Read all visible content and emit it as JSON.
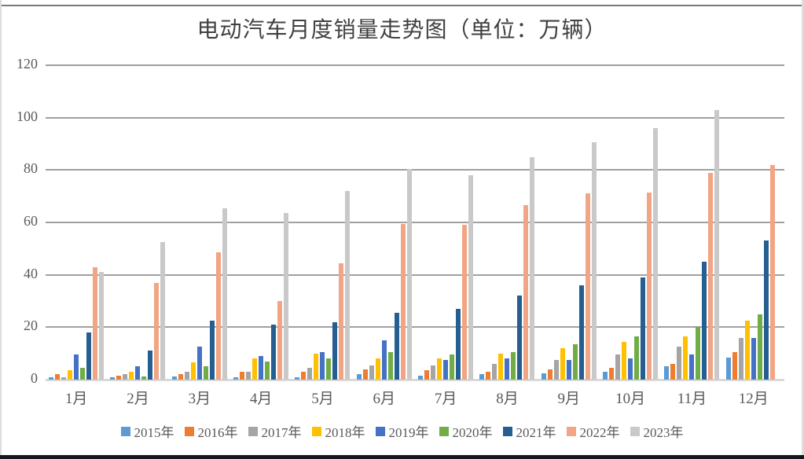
{
  "page": {
    "title": "电动汽车月度销量走势图（单位：万辆）"
  },
  "style": {
    "grid_color": "#a0a0a0",
    "axis_baseline_color": "#d9d9d9",
    "tick_label_color": "#595959",
    "title_color": "#404040",
    "background": "#ffffff"
  },
  "chart_data": {
    "type": "bar",
    "title": "电动汽车月度销量走势图（单位：万辆）",
    "unit": "万辆",
    "categories": [
      "1月",
      "2月",
      "3月",
      "4月",
      "5月",
      "6月",
      "7月",
      "8月",
      "9月",
      "10月",
      "11月",
      "12月"
    ],
    "series": [
      {
        "name": "2015年",
        "color": "#5B9BD5",
        "values": [
          1,
          0.8,
          1.2,
          1,
          1,
          2,
          1.5,
          2,
          2.5,
          3,
          5,
          8.5
        ]
      },
      {
        "name": "2016年",
        "color": "#ED7D31",
        "values": [
          2,
          1.5,
          2,
          3,
          3,
          4,
          3.5,
          3,
          4,
          4.5,
          6,
          10.5
        ]
      },
      {
        "name": "2017年",
        "color": "#A5A5A5",
        "values": [
          1,
          2,
          3,
          3,
          4.5,
          5.5,
          5.5,
          6,
          7.5,
          9.5,
          12.5,
          16
        ]
      },
      {
        "name": "2018年",
        "color": "#FFC000",
        "values": [
          3.5,
          3,
          6.5,
          8,
          10,
          8,
          8,
          10,
          12,
          14.5,
          16.5,
          22.5
        ]
      },
      {
        "name": "2019年",
        "color": "#4472C4",
        "values": [
          9.5,
          5,
          12.5,
          9,
          10.5,
          15,
          7.5,
          8,
          7.5,
          8,
          9.5,
          16
        ]
      },
      {
        "name": "2020年",
        "color": "#70AD47",
        "values": [
          4.5,
          1.2,
          5,
          7,
          8,
          10.5,
          9.5,
          10.5,
          13.5,
          16.5,
          20,
          25
        ]
      },
      {
        "name": "2021年",
        "color": "#255E91",
        "values": [
          18,
          11,
          22.5,
          21,
          22,
          25.5,
          27,
          32,
          36,
          39,
          45,
          53
        ]
      },
      {
        "name": "2022年",
        "color": "#F2A584",
        "values": [
          43,
          37,
          48.5,
          30,
          44.5,
          59.5,
          59,
          66.5,
          71,
          71.5,
          79,
          82
        ]
      },
      {
        "name": "2023年",
        "color": "#C9C9C9",
        "values": [
          41,
          52.5,
          65.5,
          63.5,
          72,
          80.5,
          78,
          85,
          90.5,
          96,
          103,
          0
        ]
      }
    ],
    "ylim": [
      0,
      120
    ],
    "ytick_interval": 20,
    "yticks": [
      0,
      20,
      40,
      60,
      80,
      100,
      120
    ],
    "grid": "horizontal",
    "legend_position": "bottom"
  }
}
